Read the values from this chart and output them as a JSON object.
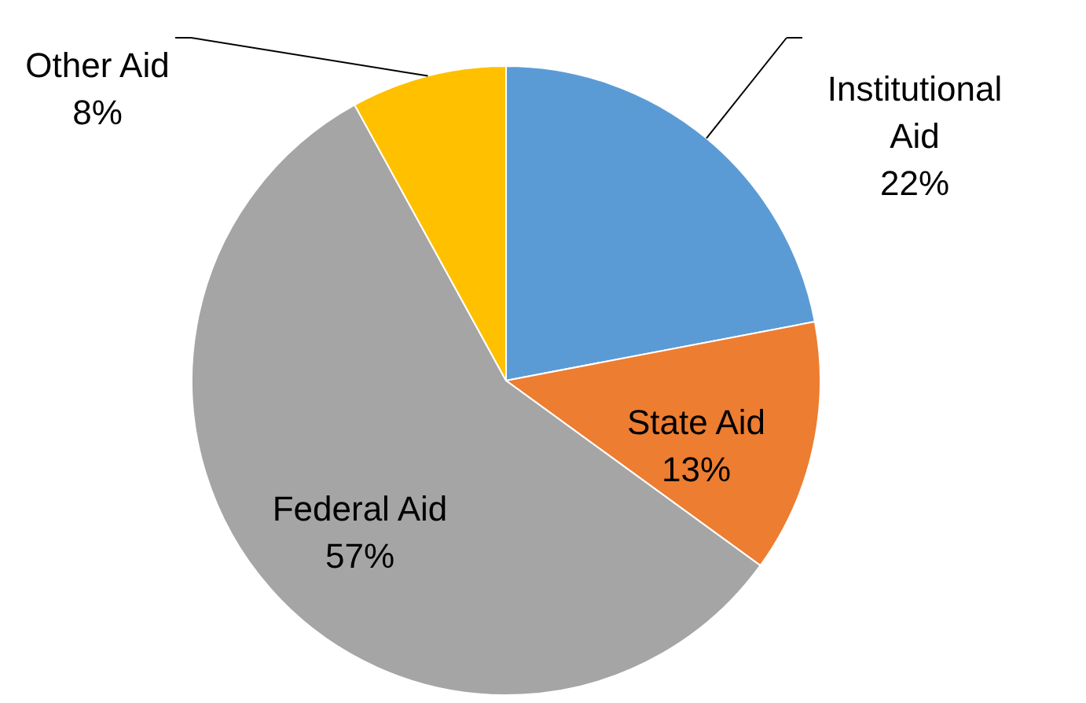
{
  "chart_data": {
    "type": "pie",
    "categories": [
      "Institutional Aid",
      "State Aid",
      "Federal Aid",
      "Other Aid"
    ],
    "values": [
      22,
      13,
      57,
      8
    ],
    "value_labels": [
      "22%",
      "13%",
      "57%",
      "8%"
    ],
    "colors": [
      "#5b9bd5",
      "#ed7d31",
      "#a5a5a5",
      "#ffc000"
    ]
  }
}
